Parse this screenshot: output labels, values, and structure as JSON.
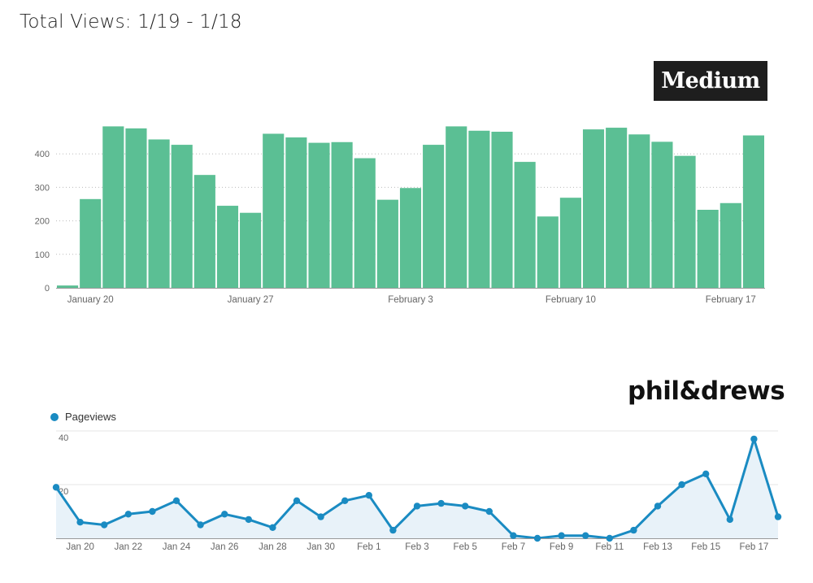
{
  "header": {
    "title": "Total Views:  1/19 - 1/18"
  },
  "brands": {
    "medium": "Medium",
    "phil_drews": "phil&drews"
  },
  "chart_data": [
    {
      "type": "bar",
      "title": "",
      "brand": "Medium",
      "color": "#5bbf94",
      "categories": [
        "Jan 19",
        "Jan 20",
        "Jan 21",
        "Jan 22",
        "Jan 23",
        "Jan 24",
        "Jan 25",
        "Jan 26",
        "Jan 27",
        "Jan 28",
        "Jan 29",
        "Jan 30",
        "Jan 31",
        "Feb 1",
        "Feb 2",
        "Feb 3",
        "Feb 4",
        "Feb 5",
        "Feb 6",
        "Feb 7",
        "Feb 8",
        "Feb 9",
        "Feb 10",
        "Feb 11",
        "Feb 12",
        "Feb 13",
        "Feb 14",
        "Feb 15",
        "Feb 16",
        "Feb 17",
        "Feb 18"
      ],
      "values": [
        7,
        265,
        482,
        476,
        443,
        427,
        337,
        245,
        224,
        460,
        449,
        433,
        435,
        387,
        263,
        298,
        427,
        482,
        469,
        466,
        376,
        213,
        269,
        473,
        478,
        458,
        436,
        394,
        233,
        253,
        455
      ],
      "x_tick_labels": [
        "January 20",
        "January 27",
        "February 3",
        "February 10",
        "February 17"
      ],
      "y_ticks": [
        0,
        100,
        200,
        300,
        400
      ],
      "ylim": [
        0,
        500
      ],
      "grid": true
    },
    {
      "type": "area",
      "brand": "phil&drews",
      "color": "#1a8bc2",
      "series": [
        {
          "name": "Pageviews",
          "x": [
            "Jan 19",
            "Jan 20",
            "Jan 21",
            "Jan 22",
            "Jan 23",
            "Jan 24",
            "Jan 25",
            "Jan 26",
            "Jan 27",
            "Jan 28",
            "Jan 29",
            "Jan 30",
            "Jan 31",
            "Feb 1",
            "Feb 2",
            "Feb 3",
            "Feb 4",
            "Feb 5",
            "Feb 6",
            "Feb 7",
            "Feb 8",
            "Feb 9",
            "Feb 10",
            "Feb 11",
            "Feb 12",
            "Feb 13",
            "Feb 14",
            "Feb 15",
            "Feb 16",
            "Feb 17",
            "Feb 18"
          ],
          "values": [
            19,
            6,
            5,
            9,
            10,
            14,
            5,
            9,
            7,
            4,
            14,
            8,
            14,
            16,
            3,
            12,
            13,
            12,
            10,
            1,
            0,
            1,
            1,
            0,
            3,
            12,
            20,
            24,
            7,
            37,
            8
          ]
        }
      ],
      "x_tick_labels": [
        "Jan 20",
        "Jan 22",
        "Jan 24",
        "Jan 26",
        "Jan 28",
        "Jan 30",
        "Feb 1",
        "Feb 3",
        "Feb 5",
        "Feb 7",
        "Feb 9",
        "Feb 11",
        "Feb 13",
        "Feb 15",
        "Feb 17"
      ],
      "y_ticks": [
        20,
        40
      ],
      "ylim": [
        0,
        40
      ],
      "legend": "top-left",
      "grid": true
    }
  ]
}
